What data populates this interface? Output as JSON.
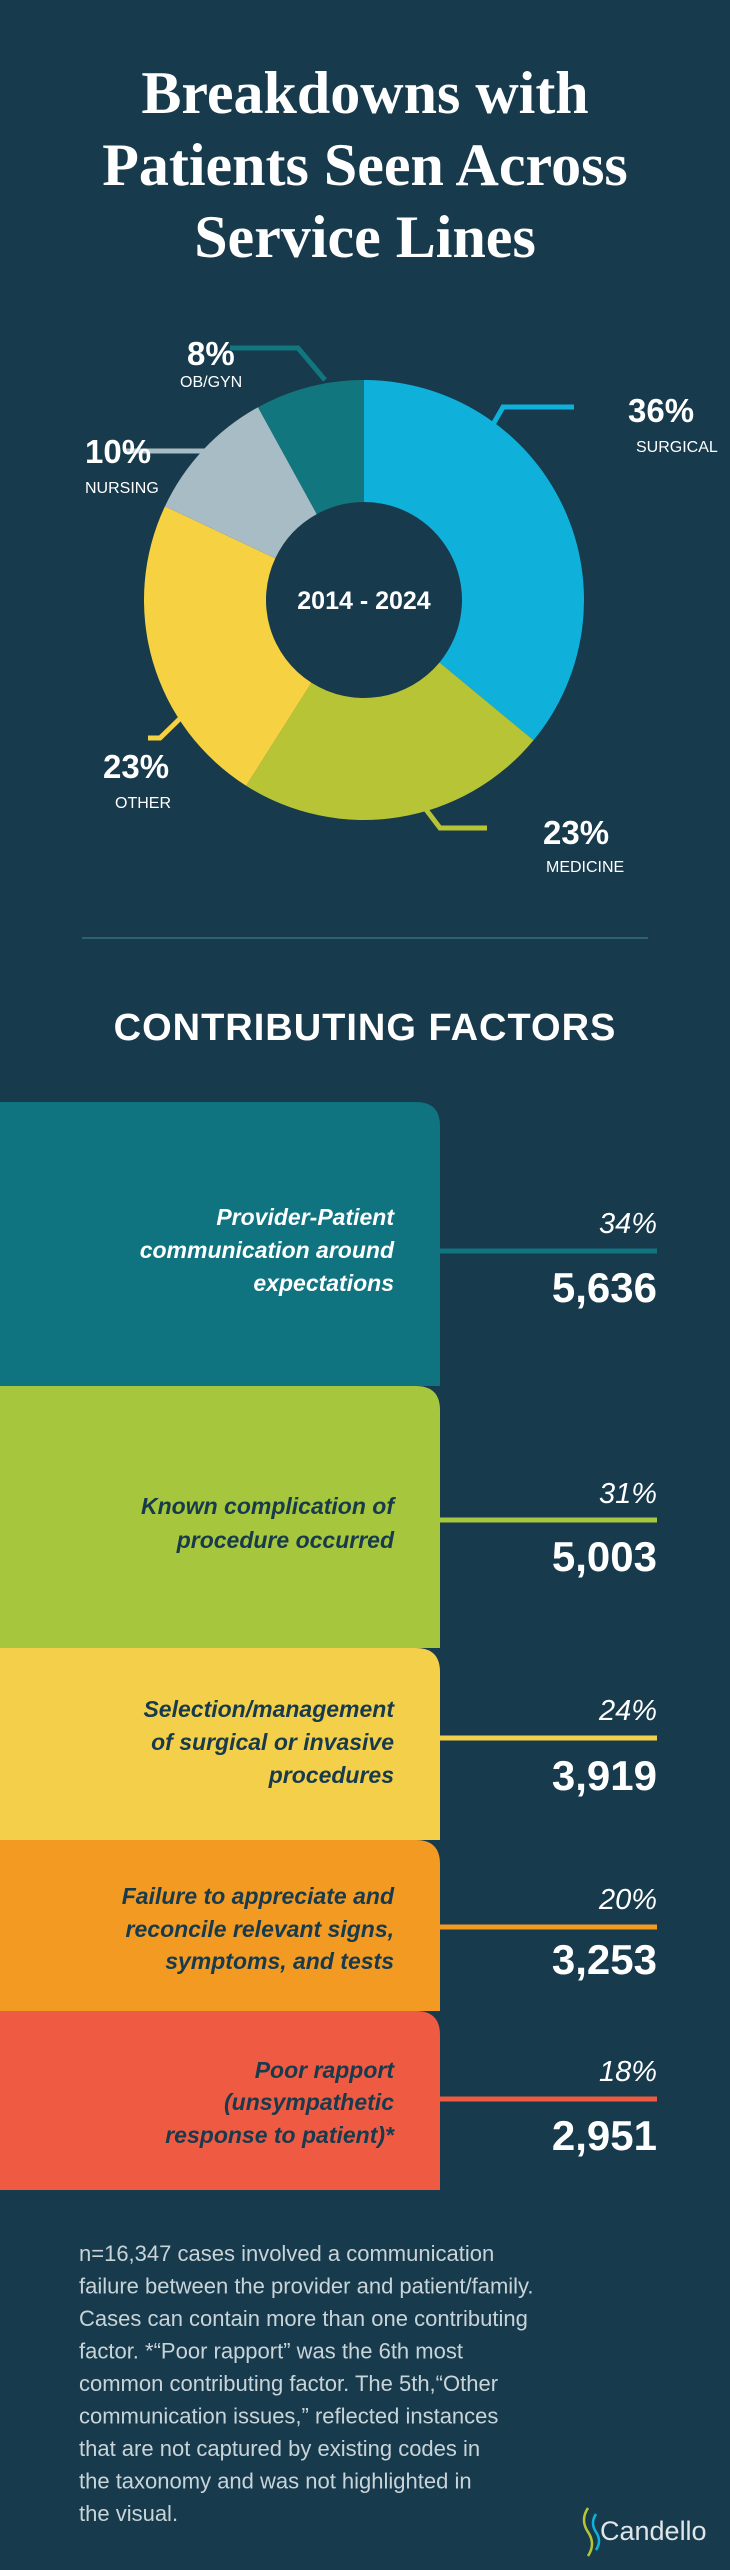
{
  "title": [
    "Breakdowns with",
    "Patients Seen Across",
    "Service Lines"
  ],
  "chart_data": {
    "type": "pie",
    "donut": true,
    "center_label": "2014 - 2024",
    "categories": [
      "SURGICAL",
      "MEDICINE",
      "OTHER",
      "NURSING",
      "OB/GYN"
    ],
    "values": [
      36,
      23,
      23,
      10,
      8
    ],
    "value_labels": [
      "36%",
      "23%",
      "23%",
      "10%",
      "8%"
    ],
    "colors": [
      "#0fb1db",
      "#b7c435",
      "#f6d243",
      "#a7bcc5",
      "#12767f"
    ]
  },
  "factors_heading": "CONTRIBUTING FACTORS",
  "factors": [
    {
      "lines": [
        "Provider-Patient",
        "communication around",
        "expectations"
      ],
      "percent": "34%",
      "count": "5,636",
      "color": "#0f7480",
      "text_color": "#ffffff"
    },
    {
      "lines": [
        "Known complication of",
        "procedure occurred"
      ],
      "percent": "31%",
      "count": "5,003",
      "color": "#a6c63d",
      "text_color": "#173a4c"
    },
    {
      "lines": [
        "Selection/management",
        "of surgical or invasive",
        "procedures"
      ],
      "percent": "24%",
      "count": "3,919",
      "color": "#f4d04a",
      "text_color": "#173a4c"
    },
    {
      "lines": [
        "Failure to appreciate and",
        "reconcile relevant signs,",
        "symptoms, and tests"
      ],
      "percent": "20%",
      "count": "3,253",
      "color": "#f39a22",
      "text_color": "#173a4c"
    },
    {
      "lines": [
        "Poor rapport",
        "(unsympathetic",
        "response to patient)*"
      ],
      "percent": "18%",
      "count": "2,951",
      "color": "#ef5a43",
      "text_color": "#173a4c"
    }
  ],
  "footnote": [
    "n=16,347 cases involved a communication",
    "failure between the provider and patient/family.",
    "Cases can contain more than one contributing",
    "factor. *“Poor rapport” was the 6th most",
    "common contributing factor. The 5th,“Other",
    "communication issues,” reflected instances",
    "that are not captured by existing codes in",
    "the taxonomy and was not highlighted in",
    "the visual."
  ],
  "logo": "Candello"
}
